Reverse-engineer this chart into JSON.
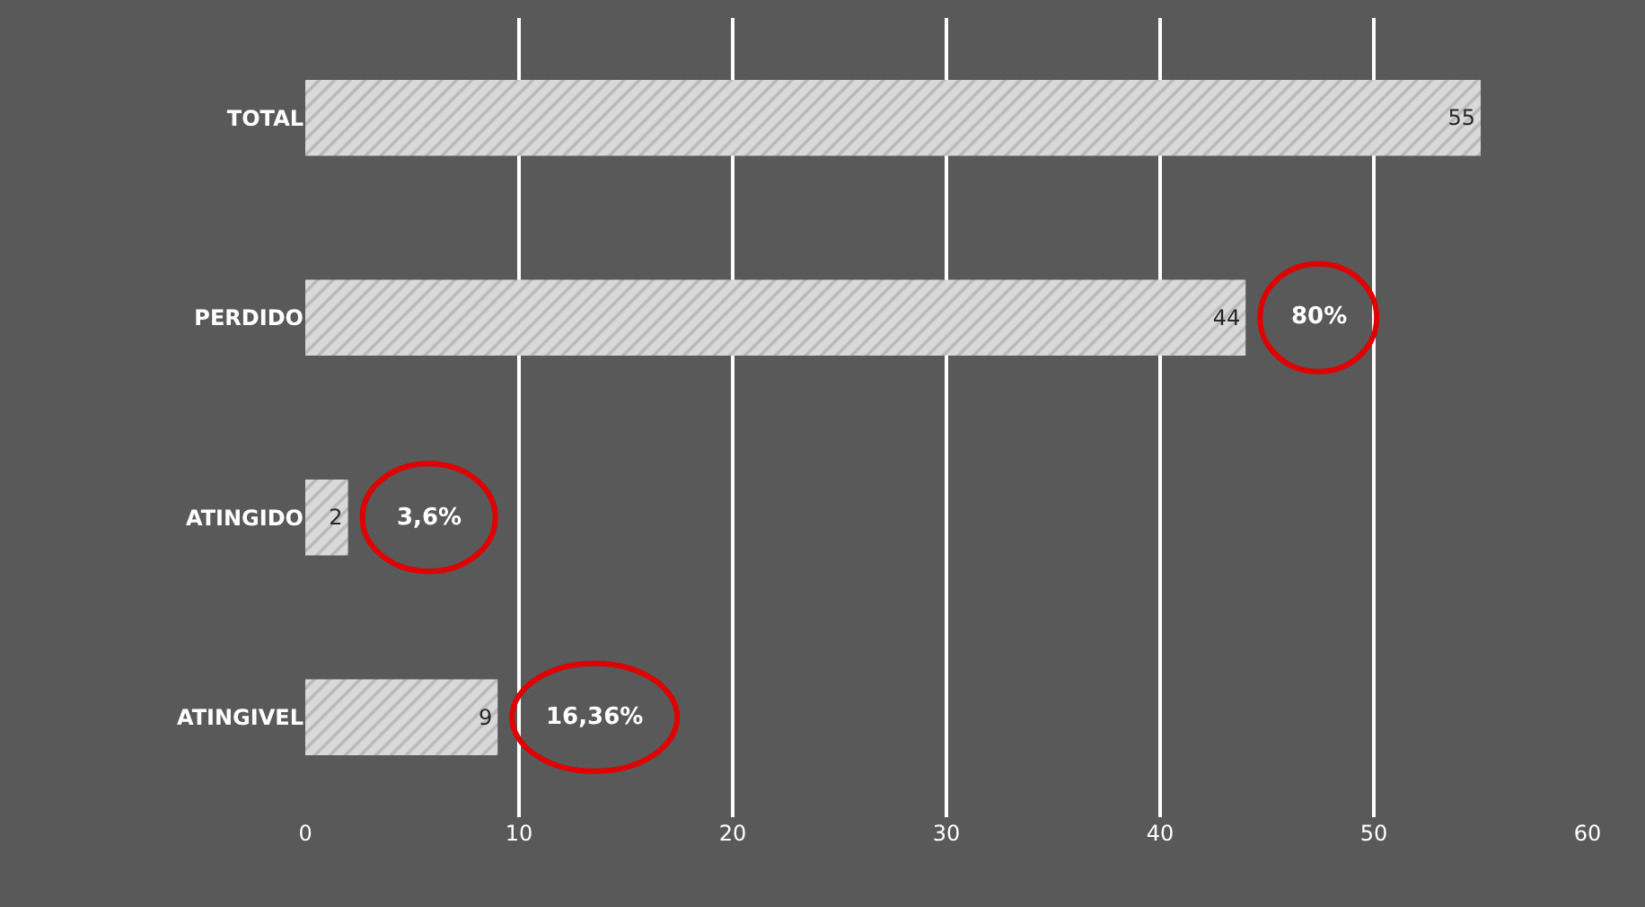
{
  "chart_data": {
    "type": "bar",
    "orientation": "horizontal",
    "categories": [
      "TOTAL",
      "PERDIDO",
      "ATINGIDO",
      "ATINGIVEL"
    ],
    "values": [
      55,
      44,
      2,
      9
    ],
    "color": "#d9d9d9",
    "xlim": [
      0,
      60
    ],
    "xticks": [
      0,
      10,
      20,
      30,
      40,
      50,
      60
    ],
    "grid": "x",
    "data_labels": true,
    "legend": false,
    "annotations": [
      {
        "text": "80%",
        "x": 44,
        "y": "PERDIDO"
      },
      {
        "text": "3,6%",
        "x": 2,
        "y": "ATINGIDO"
      },
      {
        "text": "16,36%",
        "x": 9,
        "y": "ATINGIVEL"
      }
    ]
  }
}
